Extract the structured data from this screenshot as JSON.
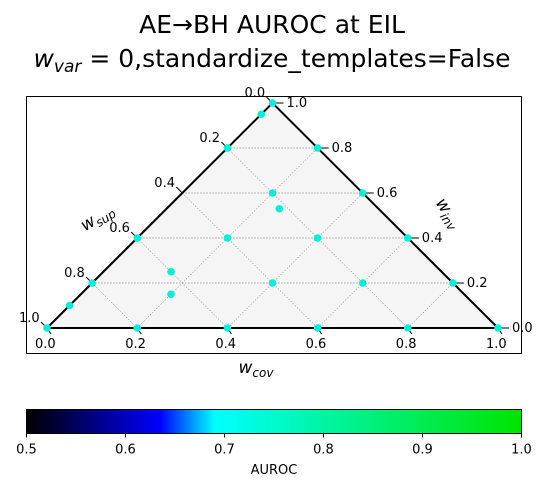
{
  "title": {
    "line1": "AE→BH AUROC at EIL",
    "line2_prefix": "w",
    "line2_sub": "var",
    "line2_rest": " = 0,standardize_templates=False"
  },
  "chart_data": {
    "type": "ternary-scatter",
    "axes": {
      "bottom": {
        "label_base": "w",
        "label_sub": "cov"
      },
      "left": {
        "label_base": "w",
        "label_sub": "sup"
      },
      "right": {
        "label_base": "w",
        "label_sub": "inv"
      }
    },
    "ticks": [
      0.0,
      0.2,
      0.4,
      0.6,
      0.8,
      1.0
    ],
    "tick_labels": [
      "0.0",
      "0.2",
      "0.4",
      "0.6",
      "0.8",
      "1.0"
    ],
    "grid": true,
    "points": [
      {
        "cov": 0.0,
        "sup": 1.0,
        "inv": 0.0,
        "auroc": 0.72
      },
      {
        "cov": 0.0,
        "sup": 0.9,
        "inv": 0.1,
        "auroc": 0.72
      },
      {
        "cov": 0.0,
        "sup": 0.8,
        "inv": 0.2,
        "auroc": 0.72
      },
      {
        "cov": 0.0,
        "sup": 0.6,
        "inv": 0.4,
        "auroc": 0.72
      },
      {
        "cov": 0.0,
        "sup": 0.2,
        "inv": 0.8,
        "auroc": 0.72
      },
      {
        "cov": 0.0,
        "sup": 0.05,
        "inv": 0.95,
        "auroc": 0.72
      },
      {
        "cov": 0.0,
        "sup": 0.0,
        "inv": 1.0,
        "auroc": 0.72
      },
      {
        "cov": 0.2,
        "sup": 0.8,
        "inv": 0.0,
        "auroc": 0.72
      },
      {
        "cov": 0.2,
        "sup": 0.65,
        "inv": 0.15,
        "auroc": 0.72
      },
      {
        "cov": 0.15,
        "sup": 0.6,
        "inv": 0.25,
        "auroc": 0.72
      },
      {
        "cov": 0.2,
        "sup": 0.4,
        "inv": 0.4,
        "auroc": 0.72
      },
      {
        "cov": 0.25,
        "sup": 0.22,
        "inv": 0.53,
        "auroc": 0.72
      },
      {
        "cov": 0.2,
        "sup": 0.2,
        "inv": 0.6,
        "auroc": 0.72
      },
      {
        "cov": 0.2,
        "sup": 0.0,
        "inv": 0.8,
        "auroc": 0.72
      },
      {
        "cov": 0.4,
        "sup": 0.6,
        "inv": 0.0,
        "auroc": 0.72
      },
      {
        "cov": 0.4,
        "sup": 0.4,
        "inv": 0.2,
        "auroc": 0.72
      },
      {
        "cov": 0.4,
        "sup": 0.2,
        "inv": 0.4,
        "auroc": 0.72
      },
      {
        "cov": 0.4,
        "sup": 0.0,
        "inv": 0.6,
        "auroc": 0.72
      },
      {
        "cov": 0.6,
        "sup": 0.2,
        "inv": 0.2,
        "auroc": 0.72
      },
      {
        "cov": 0.6,
        "sup": 0.4,
        "inv": 0.0,
        "auroc": 0.72
      },
      {
        "cov": 0.6,
        "sup": 0.0,
        "inv": 0.4,
        "auroc": 0.72
      },
      {
        "cov": 0.8,
        "sup": 0.2,
        "inv": 0.0,
        "auroc": 0.72
      },
      {
        "cov": 0.8,
        "sup": 0.0,
        "inv": 0.2,
        "auroc": 0.72
      },
      {
        "cov": 1.0,
        "sup": 0.0,
        "inv": 0.0,
        "auroc": 0.72
      }
    ],
    "colorbar": {
      "min": 0.5,
      "max": 1.0,
      "ticks": [
        0.5,
        0.6,
        0.7,
        0.8,
        0.9,
        1.0
      ],
      "tick_labels": [
        "0.5",
        "0.6",
        "0.7",
        "0.8",
        "0.9",
        "1.0"
      ],
      "label": "AUROC",
      "stops": [
        "#000000",
        "#0000ff",
        "#00ffff",
        "#00e400"
      ]
    },
    "colors": {
      "marker": "#00f0d8",
      "triangle_fill": "#f5f5f5",
      "grid": "#555555"
    }
  }
}
